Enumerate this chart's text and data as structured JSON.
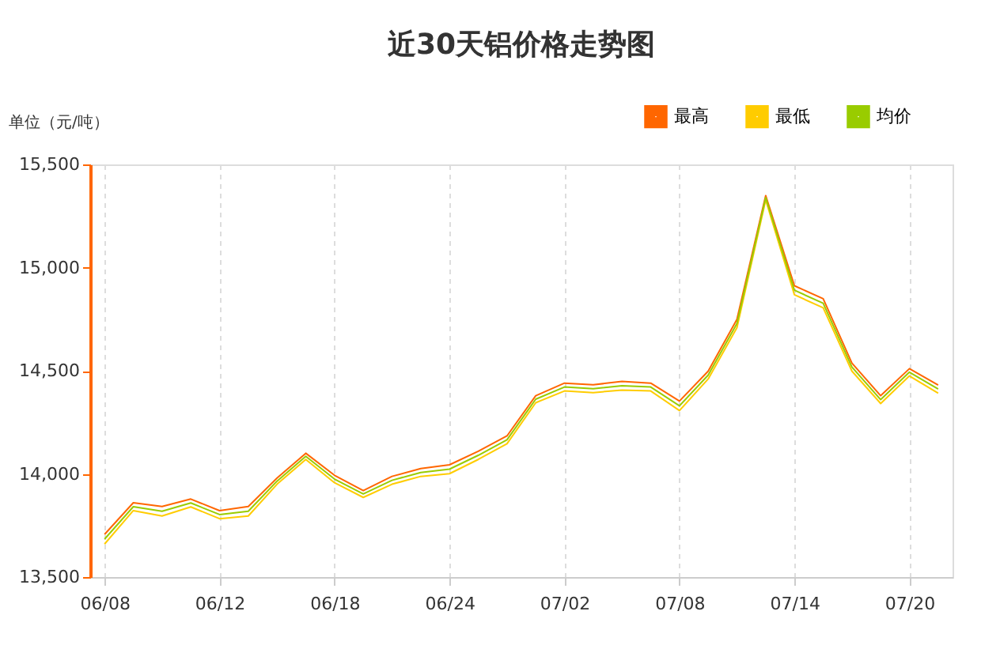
{
  "chart_data": {
    "type": "line",
    "title": "近30天铝价格走势图",
    "ylabel": "单位（元/吨）",
    "categories": [
      "06/08",
      null,
      null,
      null,
      "06/12",
      null,
      null,
      null,
      "06/18",
      null,
      null,
      null,
      "06/24",
      null,
      null,
      null,
      "07/02",
      null,
      null,
      null,
      "07/08",
      null,
      null,
      null,
      "07/14",
      null,
      null,
      null,
      "07/20",
      null
    ],
    "series": [
      {
        "name": "最高",
        "color": "#ff6600",
        "values": [
          13707,
          13860,
          13842,
          13878,
          13822,
          13842,
          13980,
          14100,
          13993,
          13919,
          13988,
          14026,
          14044,
          14110,
          14184,
          14379,
          14440,
          14432,
          14448,
          14440,
          14353,
          14498,
          14749,
          15349,
          14912,
          14849,
          14537,
          14379,
          14510,
          14431
        ]
      },
      {
        "name": "最低",
        "color": "#ffcc00",
        "values": [
          13660,
          13822,
          13796,
          13840,
          13783,
          13796,
          13950,
          14070,
          13957,
          13886,
          13950,
          13988,
          14001,
          14070,
          14146,
          14345,
          14402,
          14394,
          14406,
          14402,
          14307,
          14460,
          14709,
          15328,
          14868,
          14805,
          14498,
          14341,
          14475,
          14391
        ]
      },
      {
        "name": "均价",
        "color": "#99cc00",
        "values": [
          13684,
          13841,
          13819,
          13859,
          13803,
          13819,
          13965,
          14085,
          13975,
          13903,
          13969,
          14007,
          14023,
          14090,
          14165,
          14362,
          14421,
          14413,
          14427,
          14421,
          14330,
          14479,
          14729,
          15339,
          14890,
          14827,
          14518,
          14360,
          14493,
          14411
        ]
      }
    ],
    "ylim": [
      13500,
      15500
    ],
    "yticks": [
      {
        "value": 13500,
        "label": "13,500"
      },
      {
        "value": 14000,
        "label": "14,000"
      },
      {
        "value": 14500,
        "label": "14,500"
      },
      {
        "value": 15000,
        "label": "15,000"
      },
      {
        "value": 15500,
        "label": "15,500"
      }
    ],
    "grid": "x",
    "legend": "top right",
    "marker": "none",
    "line_style": "solid"
  }
}
